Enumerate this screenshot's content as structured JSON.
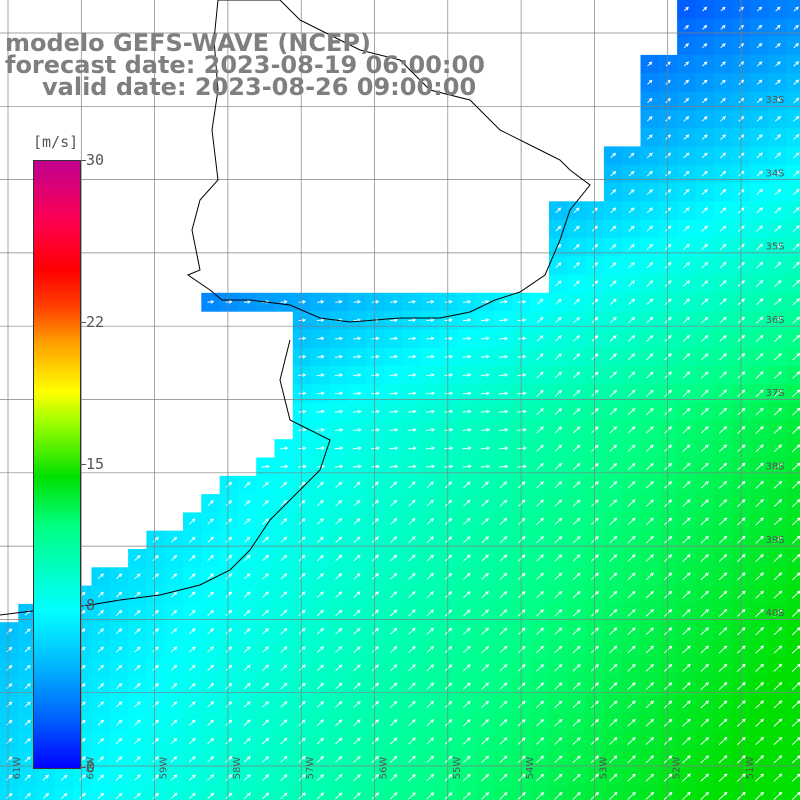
{
  "header": {
    "model_line": "modelo GEFS-WAVE (NCEP)",
    "forecast_line": "forecast date: 2023-08-19 06:00:00",
    "valid_line": "valid date: 2023-08-26 09:00:00"
  },
  "colorbar": {
    "unit": "[m/s]",
    "ticks": [
      "30",
      "22",
      "15",
      "8",
      "0"
    ],
    "tick_values": [
      30,
      22,
      15,
      8,
      0
    ],
    "range": [
      0,
      30
    ],
    "colors": [
      "#0000ff",
      "#00c0ff",
      "#00ffff",
      "#00e000",
      "#ffff00",
      "#ff0000",
      "#c00090"
    ]
  },
  "map": {
    "lat_labels": [
      "33S",
      "34S",
      "35S",
      "36S",
      "37S",
      "38S",
      "39S",
      "40S"
    ],
    "lon_labels": [
      "61W",
      "60W",
      "59W",
      "58W",
      "57W",
      "56W",
      "55W",
      "54W",
      "53W",
      "52W",
      "51W"
    ],
    "grid_color": "#808080",
    "land_color": "#ffffff",
    "coast_color": "#000000",
    "arrow_color": "#ffffff"
  }
}
